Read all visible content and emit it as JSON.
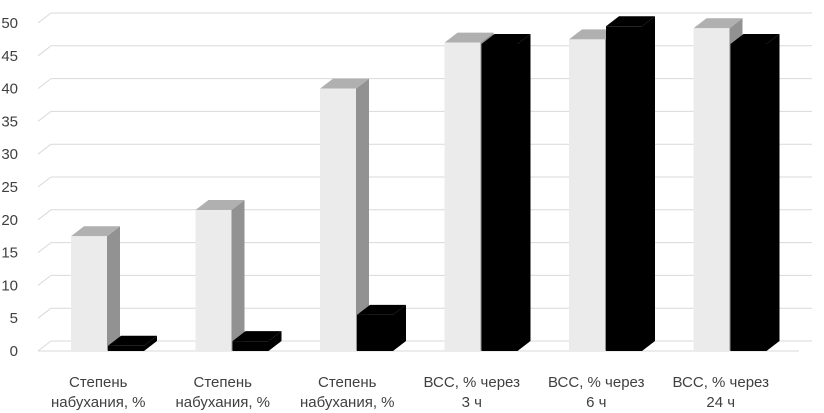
{
  "chart_data": {
    "type": "bar",
    "style": "3d-clustered-column",
    "categories": [
      [
        "Степень",
        "набухания, %"
      ],
      [
        "Степень",
        "набухания, %"
      ],
      [
        "Степень",
        "набухания, %"
      ],
      [
        "ВСС, % через",
        "3 ч"
      ],
      [
        "ВСС, % через",
        "6 ч"
      ],
      [
        "ВСС, % через",
        "24 ч"
      ]
    ],
    "series": [
      {
        "values": [
          17.5,
          21.5,
          40,
          47,
          47.5,
          49.2
        ],
        "color": "#ebebeb"
      },
      {
        "values": [
          0.8,
          1.5,
          5.5,
          46.8,
          49.5,
          46.8
        ],
        "color": "#000000"
      }
    ],
    "yticks": [
      "0",
      "5",
      "10",
      "15",
      "20",
      "25",
      "30",
      "35",
      "40",
      "45",
      "50"
    ],
    "ylim": [
      0,
      50
    ],
    "grid": true,
    "legend": "none"
  }
}
